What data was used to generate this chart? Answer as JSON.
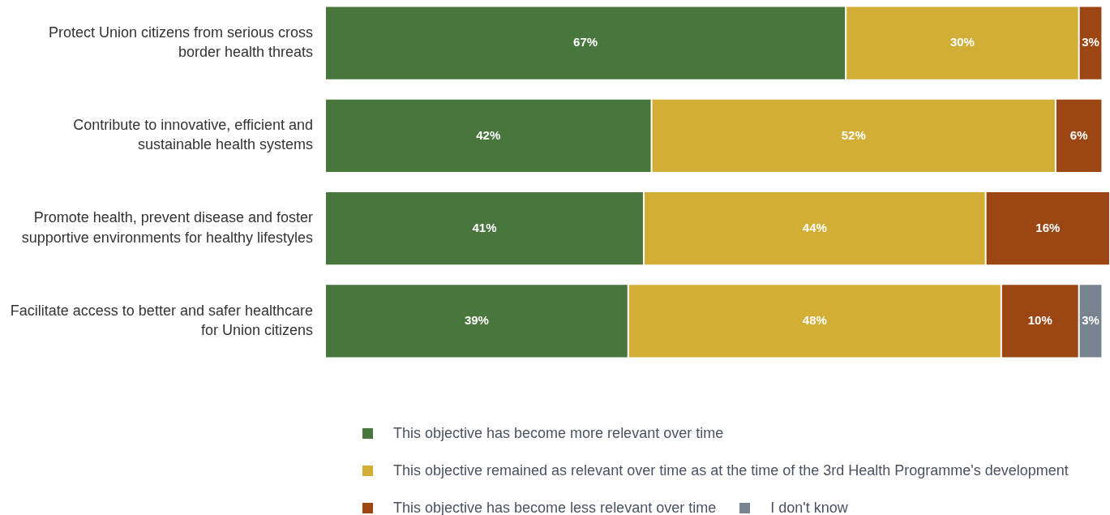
{
  "chart_data": {
    "type": "bar",
    "orientation": "horizontal",
    "stacked": true,
    "legend": "bottom",
    "tick_labels": "y",
    "categories": [
      "Protect Union citizens from serious cross border health threats",
      "Contribute to innovative, efficient and sustainable health systems",
      "Promote health, prevent disease and foster supportive environments for healthy lifestyles",
      "Facilitate access to better and safer healthcare for Union citizens"
    ],
    "xlim": [
      0,
      101
    ],
    "series": [
      {
        "name": "This objective has become more relevant over time",
        "color": "#48763c",
        "values": [
          67,
          42,
          41,
          39
        ],
        "value_labels": [
          "67%",
          "42%",
          "41%",
          "39%"
        ]
      },
      {
        "name": "This objective remained as relevant over time as at the time of the 3rd Health Programme's development",
        "color": "#d3ae37",
        "values": [
          30,
          52,
          44,
          48
        ],
        "value_labels": [
          "30%",
          "52%",
          "44%",
          "48%"
        ]
      },
      {
        "name": "This objective has become less relevant over time",
        "color": "#9c4613",
        "values": [
          3,
          6,
          16,
          10
        ],
        "value_labels": [
          "3%",
          "6%",
          "16%",
          "10%"
        ]
      },
      {
        "name": "I don't know",
        "color": "#77838f",
        "values": [
          null,
          null,
          null,
          3
        ],
        "value_labels": [
          null,
          null,
          null,
          "3%"
        ]
      }
    ]
  }
}
